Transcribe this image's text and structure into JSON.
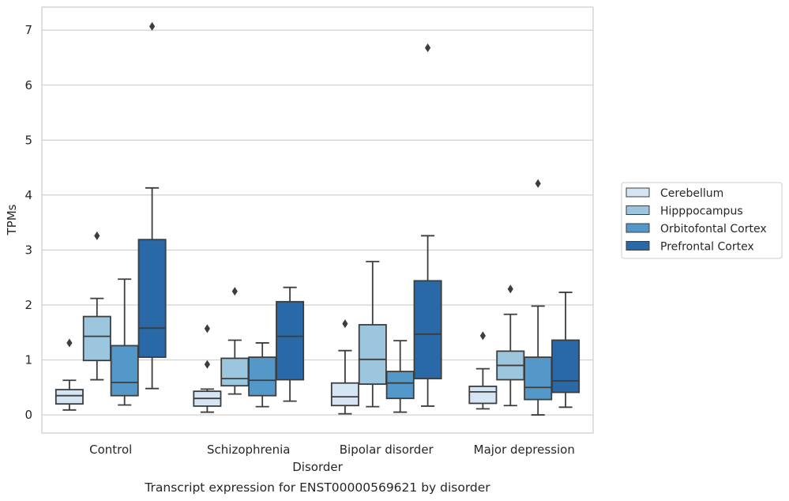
{
  "chart_data": {
    "type": "box",
    "title": "",
    "caption": "Transcript expression for ENST00000569621 by disorder",
    "xlabel": "Disorder",
    "ylabel": "TPMs",
    "ylim": [
      -0.33,
      7.42
    ],
    "yticks": [
      0,
      1,
      2,
      3,
      4,
      5,
      6,
      7
    ],
    "grid": "horizontal",
    "legend_position": "right",
    "categories": [
      "Control",
      "Schizophrenia",
      "Bipolar disorder",
      "Major depression"
    ],
    "series": [
      {
        "name": "Cerebellum",
        "color": "#d6e5f3",
        "boxes": [
          {
            "whisker_low": 0.09,
            "q1": 0.2,
            "median": 0.35,
            "q3": 0.46,
            "whisker_high": 0.63,
            "outliers": [
              1.31
            ]
          },
          {
            "whisker_low": 0.05,
            "q1": 0.16,
            "median": 0.3,
            "q3": 0.43,
            "whisker_high": 0.47,
            "outliers": [
              0.92,
              1.57
            ]
          },
          {
            "whisker_low": 0.02,
            "q1": 0.17,
            "median": 0.33,
            "q3": 0.58,
            "whisker_high": 1.17,
            "outliers": [
              1.66
            ]
          },
          {
            "whisker_low": 0.11,
            "q1": 0.21,
            "median": 0.42,
            "q3": 0.52,
            "whisker_high": 0.84,
            "outliers": [
              1.44
            ]
          }
        ]
      },
      {
        "name": "Hipppocampus",
        "color": "#9cc5de",
        "boxes": [
          {
            "whisker_low": 0.64,
            "q1": 0.99,
            "median": 1.43,
            "q3": 1.79,
            "whisker_high": 2.12,
            "outliers": [
              3.26
            ]
          },
          {
            "whisker_low": 0.38,
            "q1": 0.53,
            "median": 0.66,
            "q3": 1.03,
            "whisker_high": 1.36,
            "outliers": [
              2.25
            ]
          },
          {
            "whisker_low": 0.15,
            "q1": 0.56,
            "median": 1.01,
            "q3": 1.64,
            "whisker_high": 2.79,
            "outliers": []
          },
          {
            "whisker_low": 0.17,
            "q1": 0.64,
            "median": 0.9,
            "q3": 1.16,
            "whisker_high": 1.83,
            "outliers": [
              2.29
            ]
          }
        ]
      },
      {
        "name": "Orbitofontal Cortex",
        "color": "#5398c8",
        "boxes": [
          {
            "whisker_low": 0.18,
            "q1": 0.35,
            "median": 0.59,
            "q3": 1.26,
            "whisker_high": 2.47,
            "outliers": []
          },
          {
            "whisker_low": 0.15,
            "q1": 0.35,
            "median": 0.63,
            "q3": 1.05,
            "whisker_high": 1.31,
            "outliers": []
          },
          {
            "whisker_low": 0.05,
            "q1": 0.3,
            "median": 0.58,
            "q3": 0.79,
            "whisker_high": 1.35,
            "outliers": []
          },
          {
            "whisker_low": 0.0,
            "q1": 0.28,
            "median": 0.5,
            "q3": 1.05,
            "whisker_high": 1.98,
            "outliers": [
              4.21
            ]
          }
        ]
      },
      {
        "name": "Prefrontal Cortex",
        "color": "#2a69a7",
        "boxes": [
          {
            "whisker_low": 0.48,
            "q1": 1.05,
            "median": 1.58,
            "q3": 3.19,
            "whisker_high": 4.13,
            "outliers": [
              7.07
            ]
          },
          {
            "whisker_low": 0.25,
            "q1": 0.64,
            "median": 1.43,
            "q3": 2.06,
            "whisker_high": 2.32,
            "outliers": []
          },
          {
            "whisker_low": 0.16,
            "q1": 0.66,
            "median": 1.47,
            "q3": 2.44,
            "whisker_high": 3.26,
            "outliers": [
              6.68
            ]
          },
          {
            "whisker_low": 0.14,
            "q1": 0.41,
            "median": 0.62,
            "q3": 1.36,
            "whisker_high": 2.23,
            "outliers": []
          }
        ]
      }
    ]
  }
}
